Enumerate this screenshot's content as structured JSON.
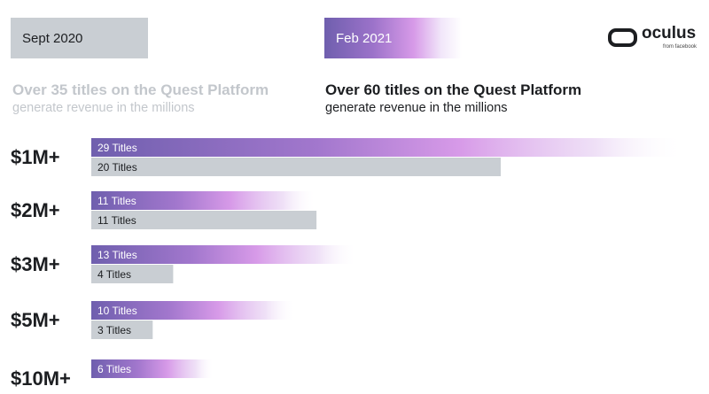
{
  "header": {
    "left_tag": "Sept 2020",
    "right_tag": "Feb 2021",
    "left_title": "Over 35 titles on the Quest Platform",
    "left_subtitle": "generate revenue in the millions",
    "right_title": "Over 60 titles on the Quest Platform",
    "right_subtitle": "generate revenue in the millions"
  },
  "logo": {
    "word": "oculus",
    "sub": "from facebook"
  },
  "colors": {
    "feb_start": "#6f5fae",
    "feb_mid": "#d79ae8",
    "sept_bar": "#c9ced3",
    "text": "#1c1e21"
  },
  "chart_data": {
    "type": "bar",
    "orientation": "horizontal",
    "categories": [
      "$1M+",
      "$2M+",
      "$3M+",
      "$5M+",
      "$10M+"
    ],
    "series": [
      {
        "name": "Feb 2021",
        "values": [
          29,
          11,
          13,
          10,
          6
        ],
        "labels": [
          "29 Titles",
          "11 Titles",
          "13 Titles",
          "10 Titles",
          "6 Titles"
        ]
      },
      {
        "name": "Sept 2020",
        "values": [
          20,
          11,
          4,
          3,
          null
        ],
        "labels": [
          "20 Titles",
          "11 Titles",
          "4 Titles",
          "3 Titles",
          ""
        ]
      }
    ],
    "legend": "top"
  }
}
